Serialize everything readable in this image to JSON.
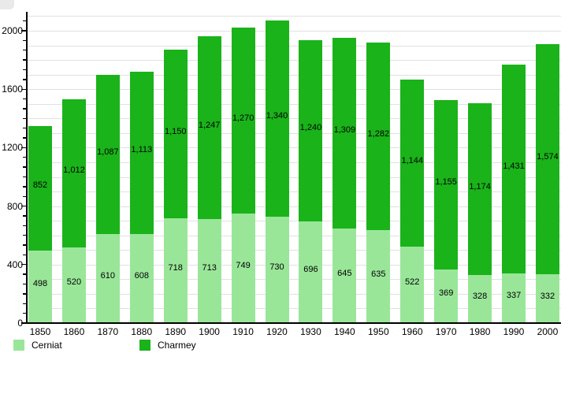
{
  "chart_data": {
    "type": "bar",
    "stacked": true,
    "title": "",
    "categories": [
      "1850",
      "1860",
      "1870",
      "1880",
      "1890",
      "1900",
      "1910",
      "1920",
      "1930",
      "1940",
      "1950",
      "1960",
      "1970",
      "1980",
      "1990",
      "2000"
    ],
    "series": [
      {
        "name": "Cerniat",
        "color": "#99e699",
        "values": [
          498,
          520,
          610,
          608,
          718,
          713,
          749,
          730,
          696,
          645,
          635,
          522,
          369,
          328,
          337,
          332
        ]
      },
      {
        "name": "Charmey",
        "color": "#1ab31a",
        "values": [
          852,
          1012,
          1087,
          1113,
          1150,
          1247,
          1270,
          1340,
          1240,
          1309,
          1282,
          1144,
          1155,
          1174,
          1431,
          1574
        ]
      }
    ],
    "value_labels_shown": true,
    "y_axis": {
      "tick_labels": [
        "0",
        "400",
        "800",
        "1200",
        "1600",
        "2000"
      ],
      "max": 2000,
      "gridline_step": 100,
      "minor_ticks_per_major": 6
    },
    "legend_position": "bottom",
    "grid": true,
    "colors": {
      "axis": "#000000",
      "gridline": "#e1e1e1",
      "text": "#000000",
      "background": "#ffffff"
    }
  }
}
